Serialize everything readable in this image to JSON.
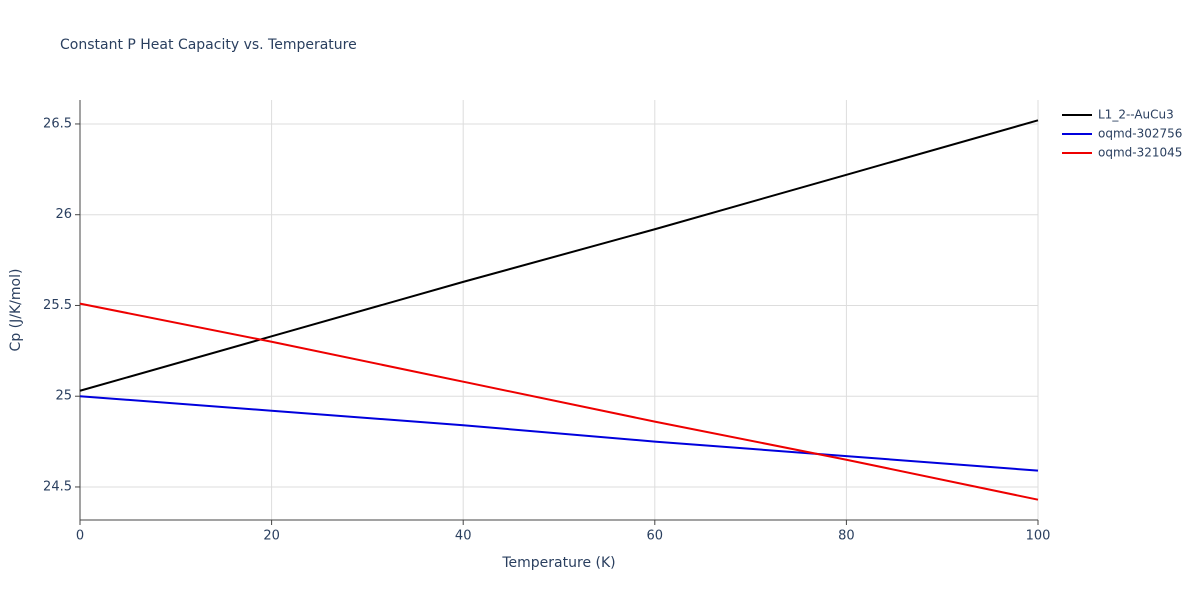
{
  "chart_data": {
    "type": "line",
    "title": "Constant P Heat Capacity vs. Temperature",
    "xlabel": "Temperature (K)",
    "ylabel": "Cp (J/K/mol)",
    "x": [
      0,
      20,
      40,
      60,
      80,
      100
    ],
    "series": [
      {
        "name": "L1_2--AuCu3",
        "color": "#000000",
        "values": [
          25.03,
          25.33,
          25.63,
          25.92,
          26.22,
          26.52
        ]
      },
      {
        "name": "oqmd-302756",
        "color": "#0000dd",
        "values": [
          25.0,
          24.92,
          24.84,
          24.75,
          24.67,
          24.59
        ]
      },
      {
        "name": "oqmd-321045",
        "color": "#ee0000",
        "values": [
          25.51,
          25.3,
          25.08,
          24.86,
          24.65,
          24.43
        ]
      }
    ],
    "xlim": [
      0,
      100
    ],
    "xticks": [
      0,
      20,
      40,
      60,
      80,
      100
    ],
    "ylim": [
      24.318,
      26.632
    ],
    "yticks": [
      24.5,
      25,
      25.5,
      26,
      26.5
    ],
    "grid": true,
    "legend": "right"
  }
}
